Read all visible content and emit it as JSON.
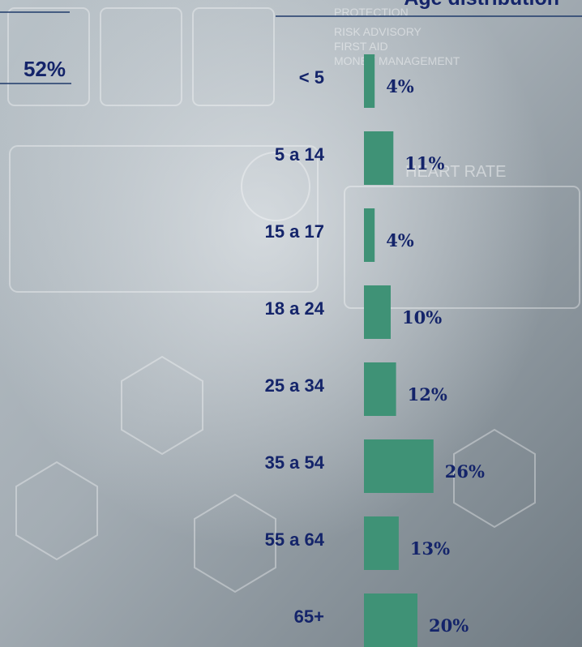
{
  "chart_data": {
    "type": "bar",
    "orientation": "horizontal",
    "title": "Age distribution",
    "highlight": "52%",
    "categories": [
      "< 5",
      "5 a 14",
      "15 a 17",
      "18 a 24",
      "25 a 34",
      "35 a 54",
      "55 a 64",
      "65+"
    ],
    "values": [
      4,
      11,
      4,
      10,
      12,
      26,
      13,
      20
    ],
    "value_labels": [
      "4%",
      "11%",
      "4%",
      "10%",
      "12%",
      "26%",
      "13%",
      "20%"
    ],
    "color": "#3f9276"
  },
  "background_labels": [
    "PROTECTION",
    "RISK ADVISORY",
    "FIRST AID",
    "MONEY MANAGEMENT",
    "HEART RATE"
  ]
}
